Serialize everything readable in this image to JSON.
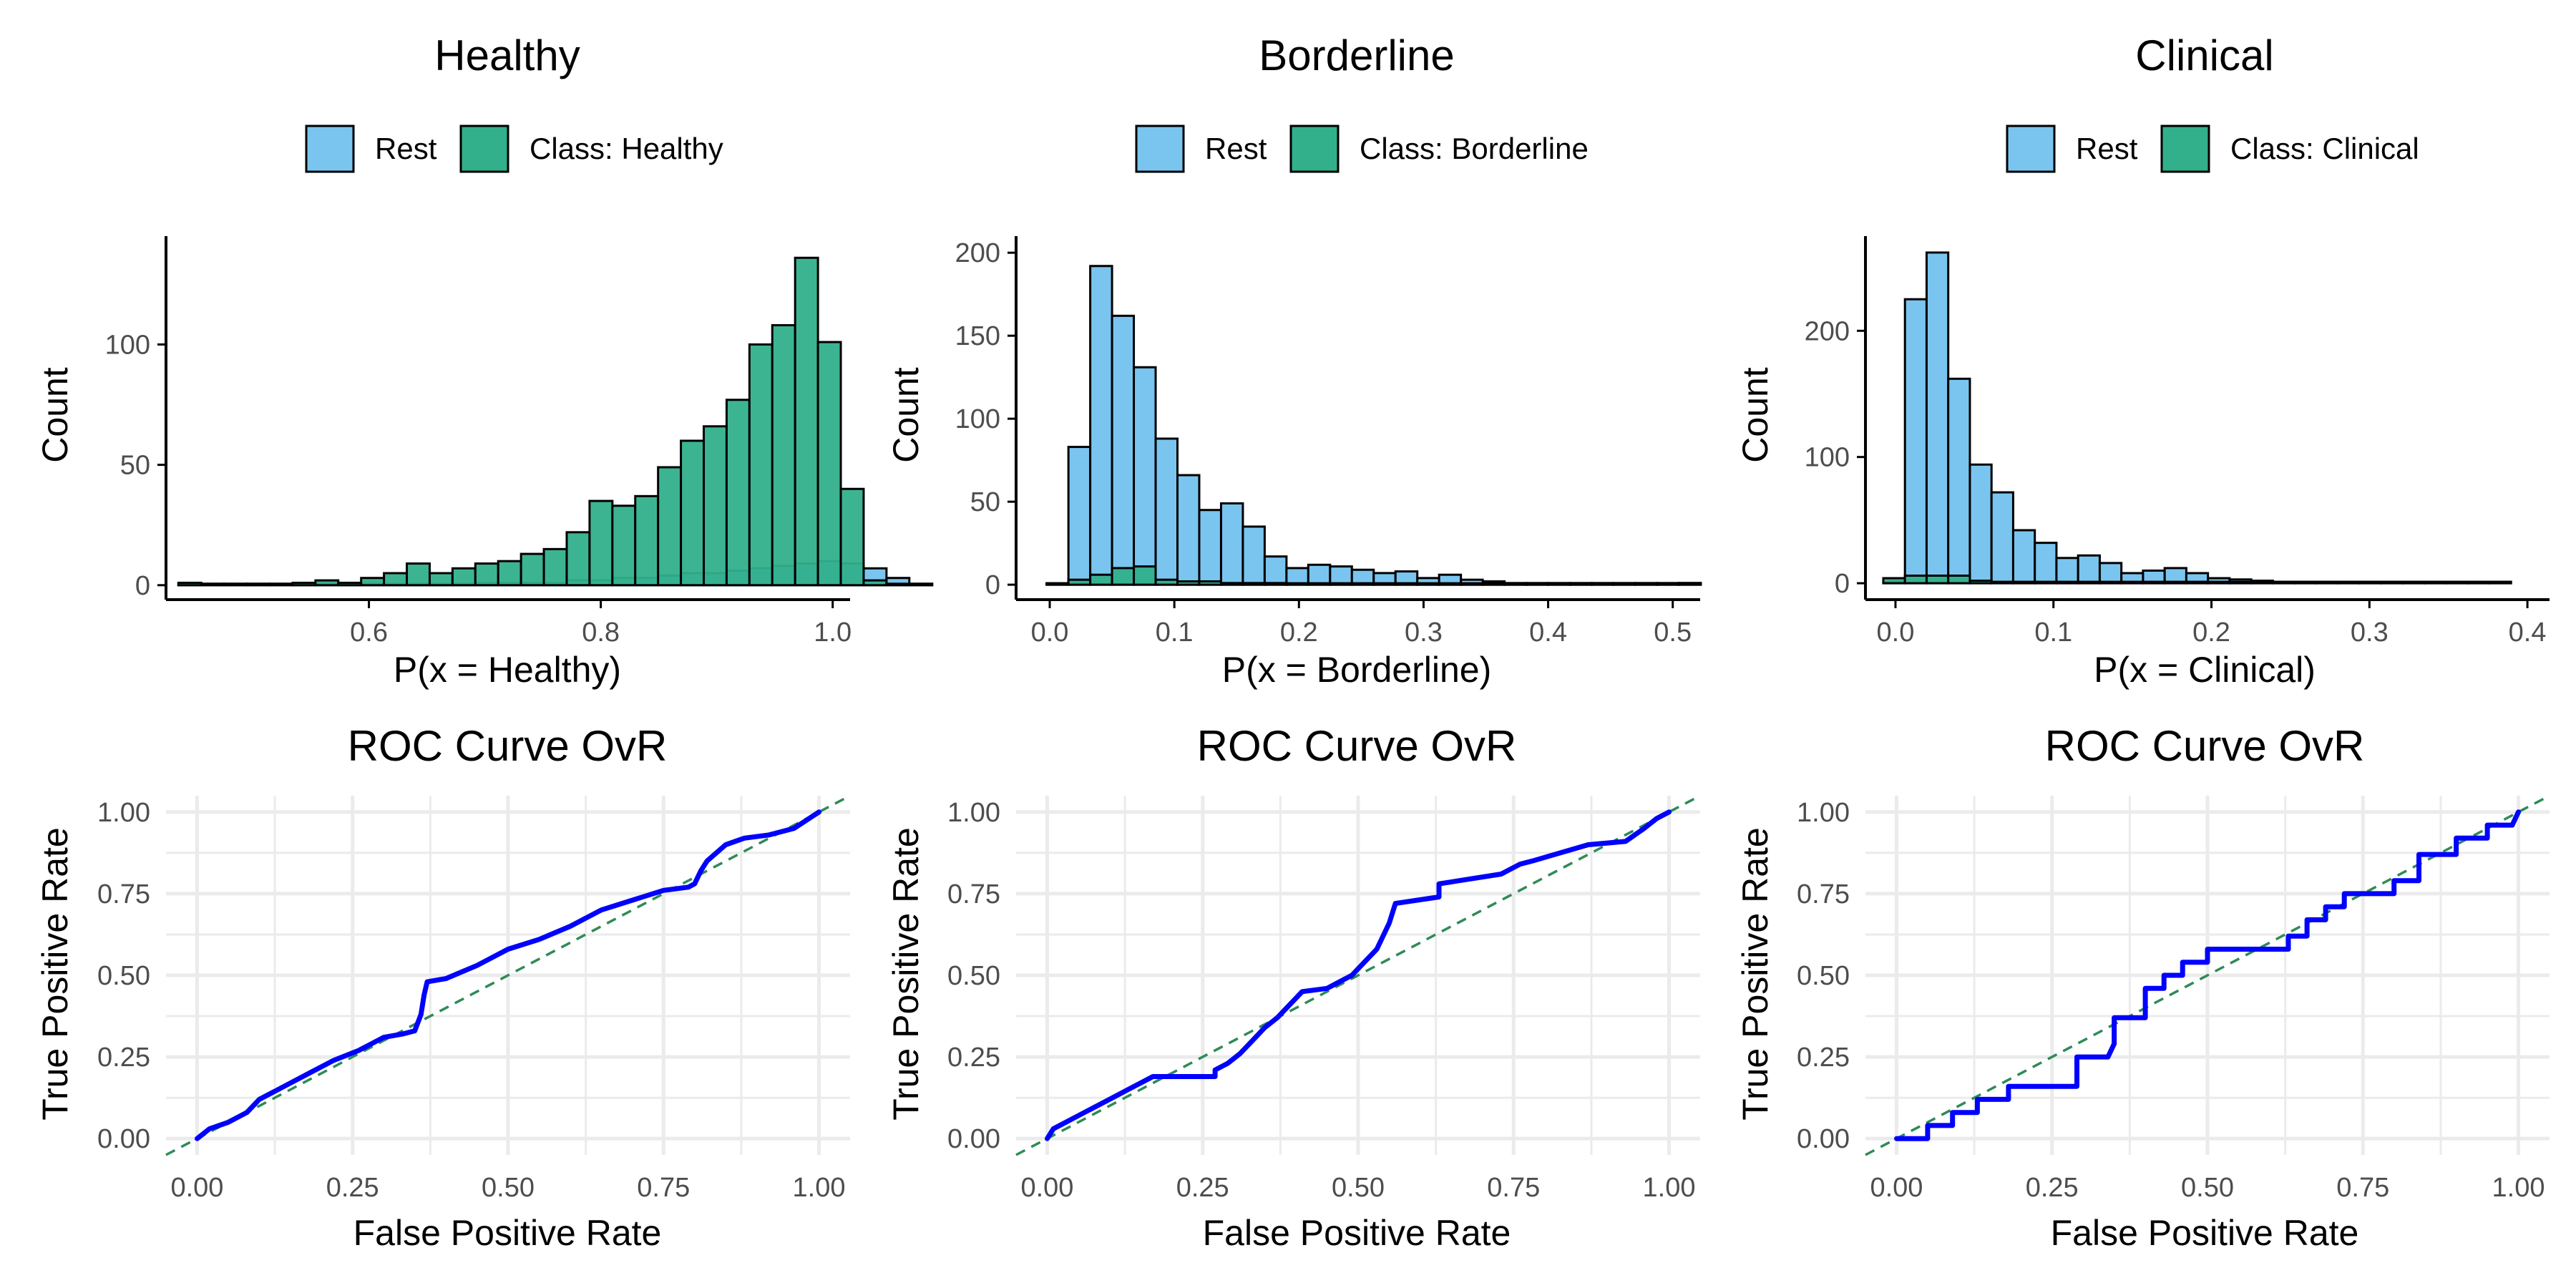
{
  "colors": {
    "rest": "#7AC5EF",
    "class": "#32B08C",
    "roc_line": "#0000FF",
    "diagonal": "#2E8B57",
    "grid": "#EBEBEB",
    "axis": "#000000",
    "tick_text": "#4D4D4D"
  },
  "chart_data": [
    {
      "type": "histogram",
      "title": "Healthy",
      "legend": [
        "Rest",
        "Class: Healthy"
      ],
      "legend_position": "top",
      "xlabel": "P(x = Healthy)",
      "ylabel": "Count",
      "xlim": [
        0.425,
        1.015
      ],
      "ylim": [
        -6,
        145
      ],
      "xticks": [
        0.6,
        0.8,
        1.0
      ],
      "xtick_labels": [
        "0.6",
        "0.8",
        "1.0"
      ],
      "yticks": [
        0,
        50,
        100
      ],
      "ytick_labels": [
        "0",
        "50",
        "100"
      ],
      "grid": false,
      "bin_start": 0.4357,
      "bin_width": 0.0197,
      "series": [
        {
          "name": "Rest",
          "counts": [
            0,
            0,
            0,
            0,
            0,
            0,
            0,
            0,
            0,
            0,
            0,
            0,
            0,
            1,
            1,
            1,
            1,
            2,
            2,
            3,
            3,
            4,
            5,
            5,
            6,
            7,
            8,
            9,
            10,
            9,
            7,
            3,
            0
          ]
        },
        {
          "name": "Class: Healthy",
          "counts": [
            1,
            0,
            0,
            0,
            0,
            1,
            2,
            1,
            3,
            5,
            9,
            5,
            7,
            9,
            10,
            13,
            15,
            22,
            35,
            33,
            37,
            49,
            60,
            66,
            77,
            100,
            108,
            136,
            101,
            40,
            2,
            0,
            0
          ]
        }
      ]
    },
    {
      "type": "histogram",
      "title": "Borderline",
      "legend": [
        "Rest",
        "Class: Borderline"
      ],
      "legend_position": "top",
      "xlabel": "P(x = Borderline)",
      "ylabel": "Count",
      "xlim": [
        -0.027,
        0.522
      ],
      "ylim": [
        -9,
        210
      ],
      "xticks": [
        0.0,
        0.1,
        0.2,
        0.3,
        0.4,
        0.5
      ],
      "xtick_labels": [
        "0.0",
        "0.1",
        "0.2",
        "0.3",
        "0.4",
        "0.5"
      ],
      "yticks": [
        0,
        50,
        100,
        150,
        200
      ],
      "ytick_labels": [
        "0",
        "50",
        "100",
        "150",
        "200"
      ],
      "grid": false,
      "bin_start": -0.0025,
      "bin_width": 0.0175,
      "series": [
        {
          "name": "Rest",
          "counts": [
            0,
            83,
            192,
            162,
            131,
            88,
            66,
            45,
            49,
            35,
            17,
            10,
            12,
            11,
            9,
            7,
            8,
            4,
            6,
            3,
            2,
            1,
            1,
            1,
            1,
            1,
            1,
            1,
            1,
            1
          ]
        },
        {
          "name": "Class: Borderline",
          "counts": [
            0,
            3,
            6,
            10,
            11,
            3,
            2,
            2,
            1,
            1,
            1,
            0,
            0,
            0,
            0,
            0,
            0,
            0,
            0,
            0,
            0,
            0,
            0,
            0,
            0,
            0,
            0,
            0,
            0,
            1
          ]
        }
      ]
    },
    {
      "type": "histogram",
      "title": "Clinical",
      "legend": [
        "Rest",
        "Class: Clinical"
      ],
      "legend_position": "top",
      "xlabel": "P(x = Clinical)",
      "ylabel": "Count",
      "xlim": [
        -0.019,
        0.414
      ],
      "ylim": [
        -13,
        275
      ],
      "xticks": [
        0.0,
        0.1,
        0.2,
        0.3,
        0.4
      ],
      "xtick_labels": [
        "0.0",
        "0.1",
        "0.2",
        "0.3",
        "0.4"
      ],
      "yticks": [
        0,
        100,
        200
      ],
      "ytick_labels": [
        "0",
        "100",
        "200"
      ],
      "grid": false,
      "bin_start": -0.0077,
      "bin_width": 0.0137,
      "series": [
        {
          "name": "Rest",
          "counts": [
            0,
            225,
            262,
            162,
            94,
            72,
            42,
            32,
            20,
            22,
            16,
            8,
            10,
            12,
            8,
            4,
            3,
            2,
            1,
            1,
            1,
            1,
            1,
            1,
            1,
            1,
            1,
            0,
            0
          ]
        },
        {
          "name": "Class: Clinical",
          "counts": [
            4,
            6,
            6,
            6,
            2,
            1,
            1,
            0,
            0,
            0,
            0,
            0,
            0,
            0,
            0,
            0,
            0,
            0,
            0,
            0,
            0,
            0,
            0,
            0,
            0,
            0,
            0,
            0,
            1
          ]
        }
      ]
    },
    {
      "type": "line",
      "title": "ROC Curve OvR",
      "xlabel": "False Positive Rate",
      "ylabel": "True Positive Rate",
      "xlim": [
        -0.05,
        1.05
      ],
      "ylim": [
        -0.05,
        1.05
      ],
      "xticks": [
        0,
        0.25,
        0.5,
        0.75,
        1.0
      ],
      "xtick_labels": [
        "0.00",
        "0.25",
        "0.50",
        "0.75",
        "1.00"
      ],
      "yticks": [
        0,
        0.25,
        0.5,
        0.75,
        1.0
      ],
      "ytick_labels": [
        "0.00",
        "0.25",
        "0.50",
        "0.75",
        "1.00"
      ],
      "grid": true,
      "reference_line": "diagonal",
      "x": [
        0,
        0.02,
        0.05,
        0.08,
        0.1,
        0.14,
        0.18,
        0.22,
        0.26,
        0.3,
        0.33,
        0.35,
        0.36,
        0.365,
        0.37,
        0.4,
        0.45,
        0.5,
        0.55,
        0.6,
        0.65,
        0.7,
        0.75,
        0.79,
        0.8,
        0.81,
        0.82,
        0.85,
        0.88,
        0.92,
        0.96,
        1.0
      ],
      "y": [
        0,
        0.03,
        0.05,
        0.08,
        0.12,
        0.16,
        0.2,
        0.24,
        0.27,
        0.31,
        0.32,
        0.33,
        0.38,
        0.44,
        0.48,
        0.49,
        0.53,
        0.58,
        0.61,
        0.65,
        0.7,
        0.73,
        0.76,
        0.77,
        0.78,
        0.82,
        0.85,
        0.9,
        0.92,
        0.93,
        0.95,
        1.0
      ]
    },
    {
      "type": "line",
      "title": "ROC Curve OvR",
      "xlabel": "False Positive Rate",
      "ylabel": "True Positive Rate",
      "xlim": [
        -0.05,
        1.05
      ],
      "ylim": [
        -0.05,
        1.05
      ],
      "xticks": [
        0,
        0.25,
        0.5,
        0.75,
        1.0
      ],
      "xtick_labels": [
        "0.00",
        "0.25",
        "0.50",
        "0.75",
        "1.00"
      ],
      "yticks": [
        0,
        0.25,
        0.5,
        0.75,
        1.0
      ],
      "ytick_labels": [
        "0.00",
        "0.25",
        "0.50",
        "0.75",
        "1.00"
      ],
      "grid": true,
      "reference_line": "diagonal",
      "x": [
        0,
        0.01,
        0.03,
        0.05,
        0.07,
        0.09,
        0.11,
        0.13,
        0.15,
        0.17,
        0.27,
        0.27,
        0.29,
        0.31,
        0.33,
        0.35,
        0.37,
        0.39,
        0.41,
        0.45,
        0.47,
        0.49,
        0.51,
        0.53,
        0.55,
        0.56,
        0.63,
        0.63,
        0.73,
        0.76,
        0.78,
        0.87,
        0.93,
        0.96,
        0.98,
        1.0
      ],
      "y": [
        0,
        0.03,
        0.05,
        0.07,
        0.09,
        0.11,
        0.13,
        0.15,
        0.17,
        0.19,
        0.19,
        0.21,
        0.23,
        0.26,
        0.3,
        0.34,
        0.37,
        0.41,
        0.45,
        0.46,
        0.48,
        0.5,
        0.54,
        0.58,
        0.66,
        0.72,
        0.74,
        0.78,
        0.81,
        0.84,
        0.85,
        0.9,
        0.91,
        0.95,
        0.98,
        1.0
      ]
    },
    {
      "type": "line",
      "title": "ROC Curve OvR",
      "xlabel": "False Positive Rate",
      "ylabel": "True Positive Rate",
      "xlim": [
        -0.05,
        1.05
      ],
      "ylim": [
        -0.05,
        1.05
      ],
      "xticks": [
        0,
        0.25,
        0.5,
        0.75,
        1.0
      ],
      "xtick_labels": [
        "0.00",
        "0.25",
        "0.50",
        "0.75",
        "1.00"
      ],
      "yticks": [
        0,
        0.25,
        0.5,
        0.75,
        1.0
      ],
      "ytick_labels": [
        "0.00",
        "0.25",
        "0.50",
        "0.75",
        "1.00"
      ],
      "grid": true,
      "reference_line": "diagonal",
      "x": [
        0,
        0.05,
        0.05,
        0.09,
        0.09,
        0.13,
        0.13,
        0.18,
        0.18,
        0.29,
        0.29,
        0.34,
        0.35,
        0.35,
        0.4,
        0.4,
        0.43,
        0.43,
        0.46,
        0.46,
        0.5,
        0.5,
        0.63,
        0.63,
        0.66,
        0.66,
        0.69,
        0.69,
        0.72,
        0.72,
        0.8,
        0.8,
        0.84,
        0.84,
        0.9,
        0.9,
        0.95,
        0.95,
        0.99,
        1.0
      ],
      "y": [
        0,
        0,
        0.04,
        0.04,
        0.08,
        0.08,
        0.12,
        0.12,
        0.16,
        0.16,
        0.25,
        0.25,
        0.29,
        0.37,
        0.37,
        0.46,
        0.46,
        0.5,
        0.5,
        0.54,
        0.54,
        0.58,
        0.58,
        0.62,
        0.62,
        0.67,
        0.67,
        0.71,
        0.71,
        0.75,
        0.75,
        0.79,
        0.79,
        0.87,
        0.87,
        0.92,
        0.92,
        0.96,
        0.96,
        1.0
      ]
    }
  ]
}
